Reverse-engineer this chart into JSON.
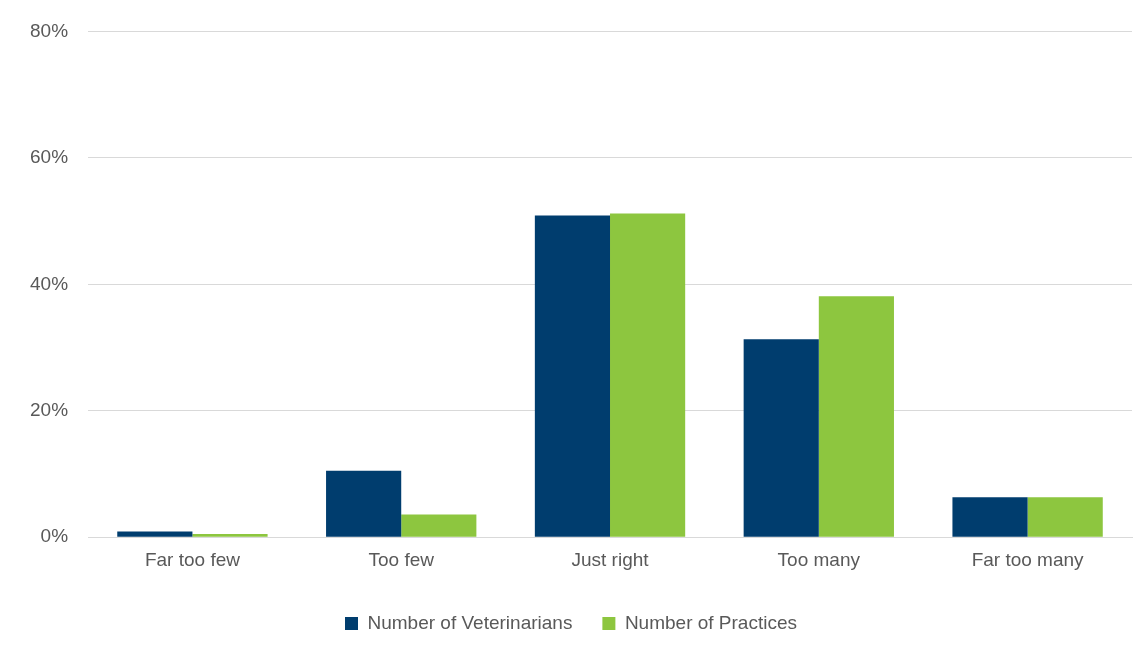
{
  "chart_data": {
    "type": "bar",
    "categories": [
      "Far too few",
      "Too few",
      "Just right",
      "Too many",
      "Far too many"
    ],
    "series": [
      {
        "name": "Number of Veterinarians",
        "color": "#003d6e",
        "values": [
          0.9,
          10.5,
          50.9,
          31.3,
          6.3
        ]
      },
      {
        "name": "Number of Practices",
        "color": "#8dc63f",
        "values": [
          0.5,
          3.6,
          51.2,
          38.1,
          6.3
        ]
      }
    ],
    "ylim": [
      0,
      80
    ],
    "yticks": [
      {
        "value": 0,
        "label": "0%"
      },
      {
        "value": 20,
        "label": "20%"
      },
      {
        "value": 40,
        "label": "40%"
      },
      {
        "value": 60,
        "label": "60%"
      },
      {
        "value": 80,
        "label": "80%"
      }
    ],
    "grid": "y",
    "legend": "bottom"
  }
}
